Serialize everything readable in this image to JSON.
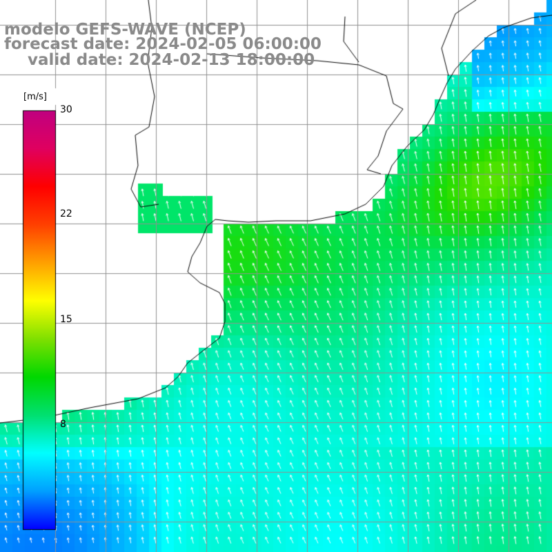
{
  "title": {
    "model": "modelo GEFS-WAVE (NCEP)",
    "forecast_date": "forecast date: 2024-02-05 06:00:00",
    "valid_date": "valid date: 2024-02-13 18:00:00"
  },
  "colorbar": {
    "unit": "[m/s]",
    "ticks": [
      "30",
      "22",
      "15",
      "8"
    ],
    "min": 0,
    "max": 30,
    "colors": [
      "#0000ff",
      "#00a0ff",
      "#00ffff",
      "#00e070",
      "#00d800",
      "#80e000",
      "#ffff00",
      "#ffa000",
      "#ff4000",
      "#ff0000",
      "#e00060",
      "#c00080"
    ]
  },
  "map": {
    "variable": "wind speed and direction",
    "grid_color": "#909090",
    "coast_color": "#000000"
  }
}
